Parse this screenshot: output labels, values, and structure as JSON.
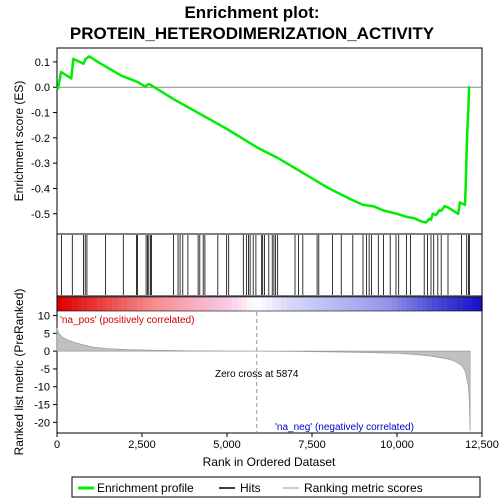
{
  "chart_data": {
    "type": "line",
    "title_line1": "Enrichment plot:",
    "title_line2": "PROTEIN_HETERODIMERIZATION_ACTIVITY",
    "x_label": "Rank in Ordered Dataset",
    "es_panel": {
      "ylabel": "Enrichment score (ES)",
      "xlim": [
        0,
        12500
      ],
      "ylim": [
        -0.58,
        0.155
      ],
      "yticks": [
        0.1,
        0.0,
        -0.1,
        -0.2,
        -0.3,
        -0.4,
        -0.5
      ],
      "ytick_labels": [
        "0.1",
        "0.0",
        "-0.1",
        "-0.2",
        "-0.3",
        "-0.4",
        "-0.5"
      ],
      "line_color": "#00ee00",
      "x": [
        0,
        30,
        120,
        420,
        480,
        780,
        840,
        950,
        1200,
        1900,
        2000,
        2350,
        2380,
        2600,
        2650,
        2720,
        3400,
        4200,
        5000,
        5874,
        6500,
        7000,
        7500,
        8000,
        8600,
        9000,
        9300,
        9600,
        10000,
        10300,
        10500,
        10700,
        10850,
        10950,
        11000,
        11050,
        11150,
        11250,
        11300,
        11400,
        11500,
        11800,
        11850,
        12000,
        12020,
        12060,
        12090,
        12120,
        12150
      ],
      "y": [
        0.0,
        -0.005,
        0.06,
        0.035,
        0.112,
        0.093,
        0.112,
        0.122,
        0.1,
        0.045,
        0.04,
        0.022,
        0.02,
        0.002,
        0.01,
        0.012,
        -0.045,
        -0.105,
        -0.165,
        -0.237,
        -0.28,
        -0.32,
        -0.36,
        -0.4,
        -0.44,
        -0.465,
        -0.47,
        -0.487,
        -0.5,
        -0.513,
        -0.517,
        -0.53,
        -0.535,
        -0.52,
        -0.524,
        -0.5,
        -0.505,
        -0.485,
        -0.488,
        -0.47,
        -0.475,
        -0.5,
        -0.455,
        -0.465,
        -0.39,
        -0.2,
        -0.11,
        0.0,
        0.0
      ]
    },
    "hits": [
      130,
      450,
      780,
      830,
      880,
      1430,
      1950,
      2340,
      2370,
      2620,
      2660,
      2700,
      2750,
      2780,
      3430,
      3560,
      3620,
      3700,
      3850,
      4150,
      4200,
      4300,
      4350,
      4730,
      4990,
      5050,
      5480,
      5570,
      5630,
      5680,
      5770,
      5850,
      6020,
      6050,
      6100,
      6230,
      6330,
      6380,
      6430,
      6490,
      7000,
      7100,
      7230,
      7650,
      7700,
      8100,
      8360,
      8700,
      9000,
      9100,
      9180,
      9250,
      9450,
      9600,
      9800,
      9970,
      10050,
      10280,
      10400,
      10800,
      10900,
      11000,
      11080,
      11200,
      11300,
      11500,
      11900,
      12050,
      12100,
      12130
    ],
    "ranking_panel": {
      "ylabel_line1": "Ranked list metric (PreRanked)",
      "ylim": [
        -23,
        11
      ],
      "yticks": [
        10,
        5,
        0,
        -5,
        -10,
        -15,
        -20
      ],
      "ytick_labels": [
        "10",
        "5",
        "0",
        "-5",
        "-10",
        "-15",
        "-20"
      ],
      "x": [
        0,
        50,
        150,
        300,
        500,
        800,
        1000,
        1500,
        2000,
        3000,
        4000,
        5000,
        5874,
        7000,
        8000,
        9000,
        10000,
        10500,
        11000,
        11500,
        11700,
        11900,
        12000,
        12050,
        12100,
        12130,
        12150
      ],
      "y": [
        6.5,
        5.0,
        4.0,
        3.2,
        2.5,
        1.7,
        1.2,
        0.7,
        0.45,
        0.25,
        0.1,
        0.03,
        0.0,
        -0.08,
        -0.2,
        -0.35,
        -0.6,
        -0.9,
        -1.4,
        -2.2,
        -2.8,
        -4.0,
        -5.5,
        -7.5,
        -10.0,
        -14.0,
        -22.5
      ],
      "pos_label": "'na_pos' (positively correlated)",
      "neg_label": "'na_neg' (negatively correlated)",
      "zero_cross_label": "Zero cross at 5874"
    },
    "xticks": [
      0,
      2500,
      5000,
      7500,
      10000,
      12500
    ],
    "xtick_labels": [
      "0",
      "2,500",
      "5,000",
      "7,500",
      "10,000",
      "12,500"
    ],
    "legend": [
      "Enrichment profile",
      "Hits",
      "Ranking metric scores"
    ]
  }
}
